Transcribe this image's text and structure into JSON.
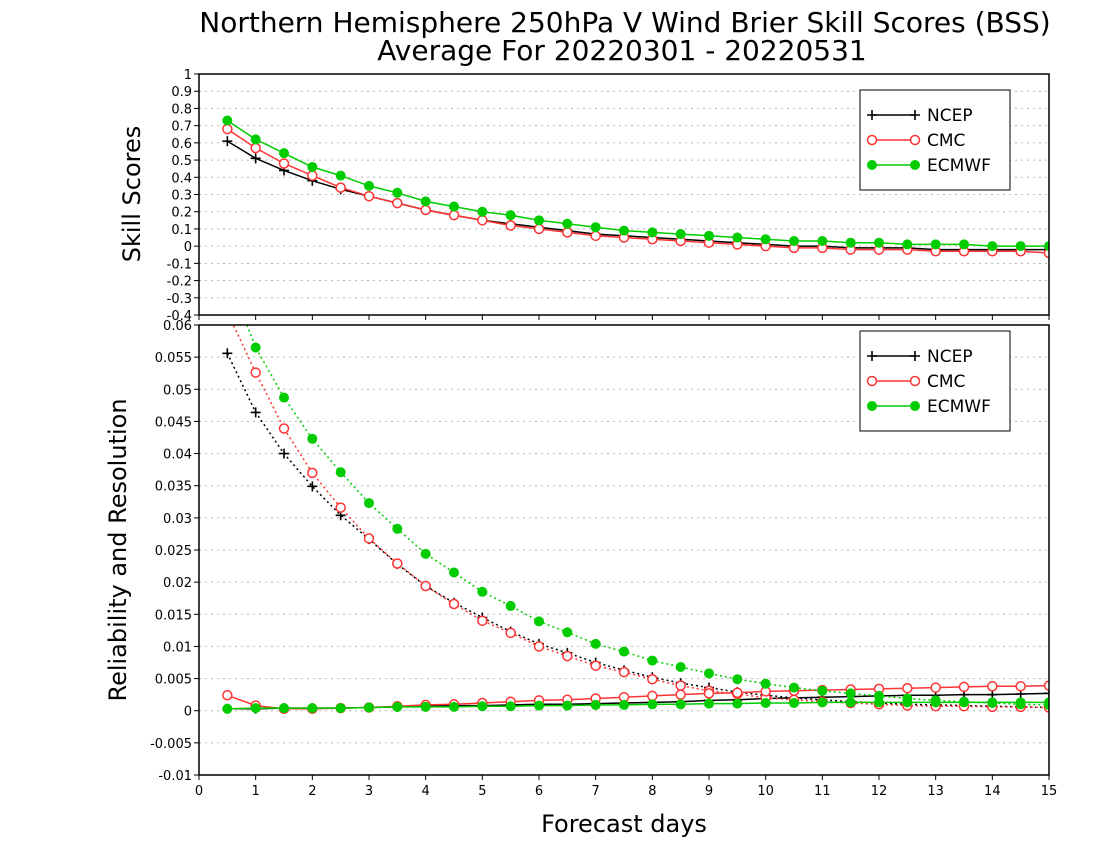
{
  "chart_data": [
    {
      "type": "line",
      "title": "Northern Hemisphere 250hPa V Wind Brier Skill Scores (BSS)",
      "subtitle": "Average For 20220301 - 20220531",
      "xlabel": "Forecast days",
      "ylabel": "Skill  Scores",
      "xlim": [
        0,
        15
      ],
      "ylim": [
        -0.4,
        1
      ],
      "x_ticks": [
        "0",
        "1",
        "2",
        "3",
        "4",
        "5",
        "6",
        "7",
        "8",
        "9",
        "10",
        "11",
        "12",
        "13",
        "14",
        "15"
      ],
      "y_ticks": [
        "-0.4",
        "-0.3",
        "-0.2",
        "-0.1",
        "0",
        "0.1",
        "0.2",
        "0.3",
        "0.4",
        "0.5",
        "0.6",
        "0.7",
        "0.8",
        "0.9",
        "1"
      ],
      "grid": "horizontal dotted",
      "legend_position": "top-right",
      "x": [
        0.5,
        1,
        1.5,
        2,
        2.5,
        3,
        3.5,
        4,
        4.5,
        5,
        5.5,
        6,
        6.5,
        7,
        7.5,
        8,
        8.5,
        9,
        9.5,
        10,
        10.5,
        11,
        11.5,
        12,
        12.5,
        13,
        13.5,
        14,
        14.5,
        15
      ],
      "series": [
        {
          "name": "NCEP",
          "color": "#000000",
          "marker": "plus",
          "values": [
            0.61,
            0.51,
            0.44,
            0.38,
            0.33,
            0.29,
            0.25,
            0.21,
            0.18,
            0.15,
            0.13,
            0.11,
            0.09,
            0.07,
            0.06,
            0.05,
            0.04,
            0.03,
            0.02,
            0.01,
            0.0,
            0.0,
            -0.01,
            -0.01,
            -0.01,
            -0.02,
            -0.02,
            -0.02,
            -0.02,
            -0.02
          ]
        },
        {
          "name": "CMC",
          "color": "#ff3333",
          "marker": "open-circle",
          "values": [
            0.68,
            0.57,
            0.48,
            0.41,
            0.34,
            0.29,
            0.25,
            0.21,
            0.18,
            0.15,
            0.12,
            0.1,
            0.08,
            0.06,
            0.05,
            0.04,
            0.03,
            0.02,
            0.01,
            0.0,
            -0.01,
            -0.01,
            -0.02,
            -0.02,
            -0.02,
            -0.03,
            -0.03,
            -0.03,
            -0.03,
            -0.04
          ]
        },
        {
          "name": "ECMWF",
          "color": "#00cc00",
          "marker": "filled-circle",
          "values": [
            0.73,
            0.62,
            0.54,
            0.46,
            0.41,
            0.35,
            0.31,
            0.26,
            0.23,
            0.2,
            0.18,
            0.15,
            0.13,
            0.11,
            0.09,
            0.08,
            0.07,
            0.06,
            0.05,
            0.04,
            0.03,
            0.03,
            0.02,
            0.02,
            0.01,
            0.01,
            0.01,
            0.0,
            0.0,
            0.0
          ]
        }
      ]
    },
    {
      "type": "line",
      "xlabel": "Forecast days",
      "ylabel": "Reliability and Resolution",
      "xlim": [
        0,
        15
      ],
      "ylim": [
        -0.01,
        0.06
      ],
      "x_ticks": [
        "0",
        "1",
        "2",
        "3",
        "4",
        "5",
        "6",
        "7",
        "8",
        "9",
        "10",
        "11",
        "12",
        "13",
        "14",
        "15"
      ],
      "y_ticks": [
        "-0.01",
        "-0.005",
        "0",
        "0.005",
        "0.01",
        "0.015",
        "0.02",
        "0.025",
        "0.03",
        "0.035",
        "0.04",
        "0.045",
        "0.05",
        "0.055",
        "0.06"
      ],
      "grid": "horizontal dotted",
      "legend_position": "top-right",
      "x": [
        0.5,
        1,
        1.5,
        2,
        2.5,
        3,
        3.5,
        4,
        4.5,
        5,
        5.5,
        6,
        6.5,
        7,
        7.5,
        8,
        8.5,
        9,
        9.5,
        10,
        10.5,
        11,
        11.5,
        12,
        12.5,
        13,
        13.5,
        14,
        14.5,
        15
      ],
      "series": [
        {
          "name": "NCEP",
          "color": "#000000",
          "marker": "plus",
          "line": "dotted",
          "values": [
            0.0556,
            0.0464,
            0.04,
            0.0349,
            0.0304,
            0.0267,
            0.0228,
            0.0194,
            0.0168,
            0.0145,
            0.0123,
            0.0104,
            0.009,
            0.0075,
            0.0063,
            0.0052,
            0.0043,
            0.0036,
            0.0029,
            0.0024,
            0.002,
            0.0017,
            0.0014,
            0.0012,
            0.001,
            0.0009,
            0.0008,
            0.0007,
            0.0006,
            0.0005
          ]
        },
        {
          "name": "NCEP",
          "color": "#000000",
          "marker": "plus",
          "line": "solid",
          "values": [
            0.0003,
            0.0003,
            0.0004,
            0.0004,
            0.0004,
            0.0005,
            0.0006,
            0.0007,
            0.0008,
            0.0008,
            0.0009,
            0.001,
            0.001,
            0.0011,
            0.0012,
            0.0013,
            0.0014,
            0.0016,
            0.0017,
            0.0019,
            0.002,
            0.0021,
            0.0022,
            0.0023,
            0.0024,
            0.0024,
            0.0025,
            0.0025,
            0.0026,
            0.0027
          ]
        },
        {
          "name": "CMC",
          "color": "#ff3333",
          "marker": "open-circle",
          "line": "dotted",
          "values": [
            0.062,
            0.0526,
            0.0439,
            0.037,
            0.0316,
            0.0268,
            0.0229,
            0.0194,
            0.0166,
            0.014,
            0.0121,
            0.01,
            0.0085,
            0.007,
            0.006,
            0.0049,
            0.0039,
            0.0031,
            0.0026,
            0.002,
            0.0017,
            0.0014,
            0.0012,
            0.001,
            0.0008,
            0.0007,
            0.0007,
            0.0006,
            0.0006,
            0.0005
          ]
        },
        {
          "name": "CMC",
          "color": "#ff3333",
          "marker": "open-circle",
          "line": "solid",
          "values": [
            0.0024,
            0.0008,
            0.0003,
            0.0003,
            0.0004,
            0.0005,
            0.0007,
            0.0009,
            0.001,
            0.0012,
            0.0014,
            0.0016,
            0.0017,
            0.0019,
            0.0021,
            0.0023,
            0.0025,
            0.0027,
            0.0028,
            0.003,
            0.0031,
            0.0032,
            0.0033,
            0.0034,
            0.0035,
            0.0036,
            0.0037,
            0.0038,
            0.0038,
            0.0039
          ]
        },
        {
          "name": "ECMWF",
          "color": "#00cc00",
          "marker": "filled-circle",
          "line": "dotted",
          "values": [
            0.068,
            0.0565,
            0.0487,
            0.0423,
            0.0371,
            0.0323,
            0.0283,
            0.0244,
            0.0215,
            0.0185,
            0.0163,
            0.0139,
            0.0122,
            0.0104,
            0.0092,
            0.0078,
            0.0068,
            0.0058,
            0.0049,
            0.0042,
            0.0036,
            0.0031,
            0.0027,
            0.0023,
            0.0019,
            0.0016,
            0.0014,
            0.0012,
            0.001,
            0.0009
          ]
        },
        {
          "name": "ECMWF",
          "color": "#00cc00",
          "marker": "filled-circle",
          "line": "solid",
          "values": [
            0.0003,
            0.0004,
            0.0004,
            0.0004,
            0.0004,
            0.0005,
            0.0006,
            0.0006,
            0.0006,
            0.0007,
            0.0007,
            0.0008,
            0.0008,
            0.0009,
            0.0009,
            0.001,
            0.001,
            0.0011,
            0.0011,
            0.0012,
            0.0012,
            0.0013,
            0.0013,
            0.0013,
            0.0013,
            0.0013,
            0.0013,
            0.0013,
            0.0013,
            0.0013
          ]
        }
      ]
    }
  ]
}
